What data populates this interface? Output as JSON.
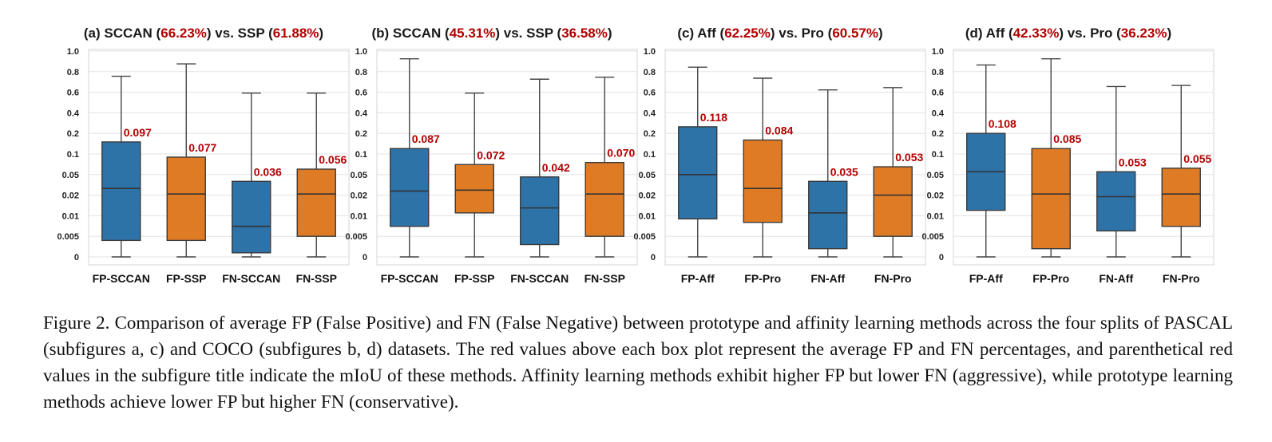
{
  "chart_data": [
    {
      "type": "box",
      "title": {
        "prefix": "(a) SCCAN (",
        "v1": "66.23%",
        "mid": ") vs. SSP (",
        "v2": "61.88%",
        "suffix": ")"
      },
      "yticks": [
        "0",
        "0.005",
        "0.01",
        "0.02",
        "0.05",
        "0.1",
        "0.2",
        "0.4",
        "0.6",
        "0.8",
        "1.0"
      ],
      "grid": true,
      "boxes": [
        {
          "label": "FP-SCCAN",
          "color": "#2e73a8",
          "min": 0,
          "q1": 0.004,
          "median": 0.027,
          "q3": 0.15,
          "max": 0.75,
          "mean_label": "0.097"
        },
        {
          "label": "FP-SSP",
          "color": "#e07b25",
          "min": 0,
          "q1": 0.004,
          "median": 0.021,
          "q3": 0.09,
          "max": 0.87,
          "mean_label": "0.077"
        },
        {
          "label": "FN-SCCAN",
          "color": "#2e73a8",
          "min": 0,
          "q1": 0.001,
          "median": 0.007,
          "q3": 0.037,
          "max": 0.59,
          "mean_label": "0.036"
        },
        {
          "label": "FN-SSP",
          "color": "#e07b25",
          "min": 0,
          "q1": 0.005,
          "median": 0.021,
          "q3": 0.06,
          "max": 0.59,
          "mean_label": "0.056"
        }
      ]
    },
    {
      "type": "box",
      "title": {
        "prefix": "(b) SCCAN (",
        "v1": "45.31%",
        "mid": ") vs. SSP (",
        "v2": "36.58%",
        "suffix": ")"
      },
      "yticks": [
        "0",
        "0.005",
        "0.01",
        "0.02",
        "0.05",
        "0.1",
        "0.2",
        "0.4",
        "0.6",
        "0.8",
        "1.0"
      ],
      "grid": true,
      "boxes": [
        {
          "label": "FP-SCCAN",
          "color": "#2e73a8",
          "min": 0,
          "q1": 0.007,
          "median": 0.024,
          "q3": 0.12,
          "max": 0.92,
          "mean_label": "0.087"
        },
        {
          "label": "FP-SSP",
          "color": "#e07b25",
          "min": 0,
          "q1": 0.011,
          "median": 0.025,
          "q3": 0.07,
          "max": 0.59,
          "mean_label": "0.072"
        },
        {
          "label": "FN-SCCAN",
          "color": "#2e73a8",
          "min": 0,
          "q1": 0.003,
          "median": 0.013,
          "q3": 0.045,
          "max": 0.72,
          "mean_label": "0.042"
        },
        {
          "label": "FN-SSP",
          "color": "#e07b25",
          "min": 0,
          "q1": 0.005,
          "median": 0.021,
          "q3": 0.075,
          "max": 0.74,
          "mean_label": "0.070"
        }
      ]
    },
    {
      "type": "box",
      "title": {
        "prefix": "(c) Aff (",
        "v1": "62.25%",
        "mid": ") vs. Pro (",
        "v2": "60.57%",
        "suffix": ")"
      },
      "yticks": [
        "0",
        "0.005",
        "0.01",
        "0.02",
        "0.05",
        "0.1",
        "0.2",
        "0.4",
        "0.6",
        "0.8",
        "1.0"
      ],
      "grid": true,
      "boxes": [
        {
          "label": "FP-Aff",
          "color": "#2e73a8",
          "min": 0,
          "q1": 0.009,
          "median": 0.05,
          "q3": 0.25,
          "max": 0.84,
          "mean_label": "0.118"
        },
        {
          "label": "FP-Pro",
          "color": "#e07b25",
          "min": 0,
          "q1": 0.008,
          "median": 0.027,
          "q3": 0.16,
          "max": 0.73,
          "mean_label": "0.084"
        },
        {
          "label": "FN-Aff",
          "color": "#2e73a8",
          "min": 0,
          "q1": 0.002,
          "median": 0.011,
          "q3": 0.037,
          "max": 0.62,
          "mean_label": "0.035"
        },
        {
          "label": "FN-Pro",
          "color": "#e07b25",
          "min": 0,
          "q1": 0.005,
          "median": 0.02,
          "q3": 0.065,
          "max": 0.64,
          "mean_label": "0.053"
        }
      ]
    },
    {
      "type": "box",
      "title": {
        "prefix": "(d) Aff (",
        "v1": "42.33%",
        "mid": ") vs. Pro (",
        "v2": "36.23%",
        "suffix": ")"
      },
      "yticks": [
        "0",
        "0.005",
        "0.01",
        "0.02",
        "0.05",
        "0.1",
        "0.2",
        "0.4",
        "0.6",
        "0.8",
        "1.0"
      ],
      "grid": true,
      "boxes": [
        {
          "label": "FP-Aff",
          "color": "#2e73a8",
          "min": 0,
          "q1": 0.012,
          "median": 0.055,
          "q3": 0.2,
          "max": 0.86,
          "mean_label": "0.108"
        },
        {
          "label": "FP-Pro",
          "color": "#e07b25",
          "min": 0,
          "q1": 0.002,
          "median": 0.021,
          "q3": 0.12,
          "max": 0.92,
          "mean_label": "0.085"
        },
        {
          "label": "FN-Aff",
          "color": "#2e73a8",
          "min": 0,
          "q1": 0.006,
          "median": 0.019,
          "q3": 0.055,
          "max": 0.65,
          "mean_label": "0.053"
        },
        {
          "label": "FN-Pro",
          "color": "#e07b25",
          "min": 0,
          "q1": 0.007,
          "median": 0.021,
          "q3": 0.062,
          "max": 0.66,
          "mean_label": "0.055"
        }
      ]
    }
  ],
  "caption": "Figure 2. Comparison of average FP (False Positive) and FN (False Negative) between prototype and affinity learning methods across the four splits of PASCAL (subfigures a, c) and COCO (subfigures b, d) datasets. The red values above each box plot represent the average FP and FN percentages, and parenthetical red values in the subfigure title indicate the mIoU of these methods. Affinity learning methods exhibit higher FP but lower FN (aggressive), while prototype learning methods achieve lower FP but higher FN (conservative)."
}
